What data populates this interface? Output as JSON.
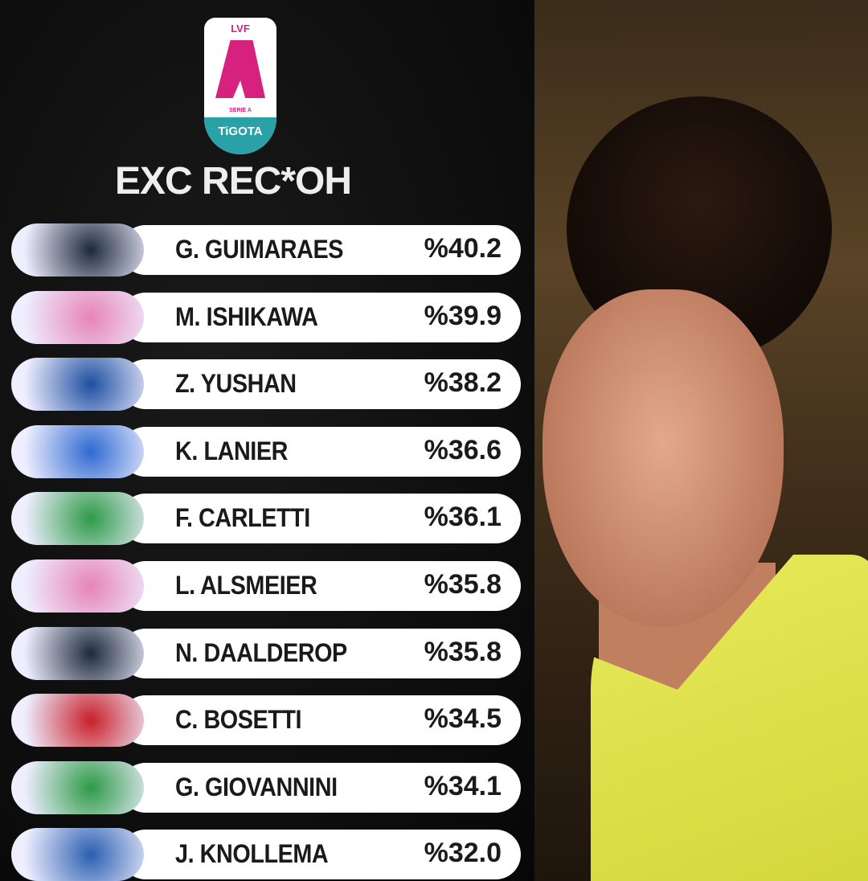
{
  "league_logo": {
    "top": "LVF",
    "middle": "SERIE A",
    "bottom": "TiGOTA"
  },
  "title": "EXC REC*OH",
  "rows": [
    {
      "name": "G. GUIMARAES",
      "value": "%40.2",
      "team_color": "#1d2a3a"
    },
    {
      "name": "M. ISHIKAWA",
      "value": "%39.9",
      "team_color": "#e784b8"
    },
    {
      "name": "Z. YUSHAN",
      "value": "%38.2",
      "team_color": "#1f4fa0"
    },
    {
      "name": "K. LANIER",
      "value": "%36.6",
      "team_color": "#2f6ad0"
    },
    {
      "name": "F. CARLETTI",
      "value": "%36.1",
      "team_color": "#2e9a47"
    },
    {
      "name": "L. ALSMEIER",
      "value": "%35.8",
      "team_color": "#e784b8"
    },
    {
      "name": "N. DAALDEROP",
      "value": "%35.8",
      "team_color": "#1d2a3a"
    },
    {
      "name": "C. BOSETTI",
      "value": "%34.5",
      "team_color": "#c8202a"
    },
    {
      "name": "G. GIOVANNINI",
      "value": "%34.1",
      "team_color": "#2e9a47"
    },
    {
      "name": "J. KNOLLEMA",
      "value": "%32.0",
      "team_color": "#2b5fb0"
    }
  ]
}
